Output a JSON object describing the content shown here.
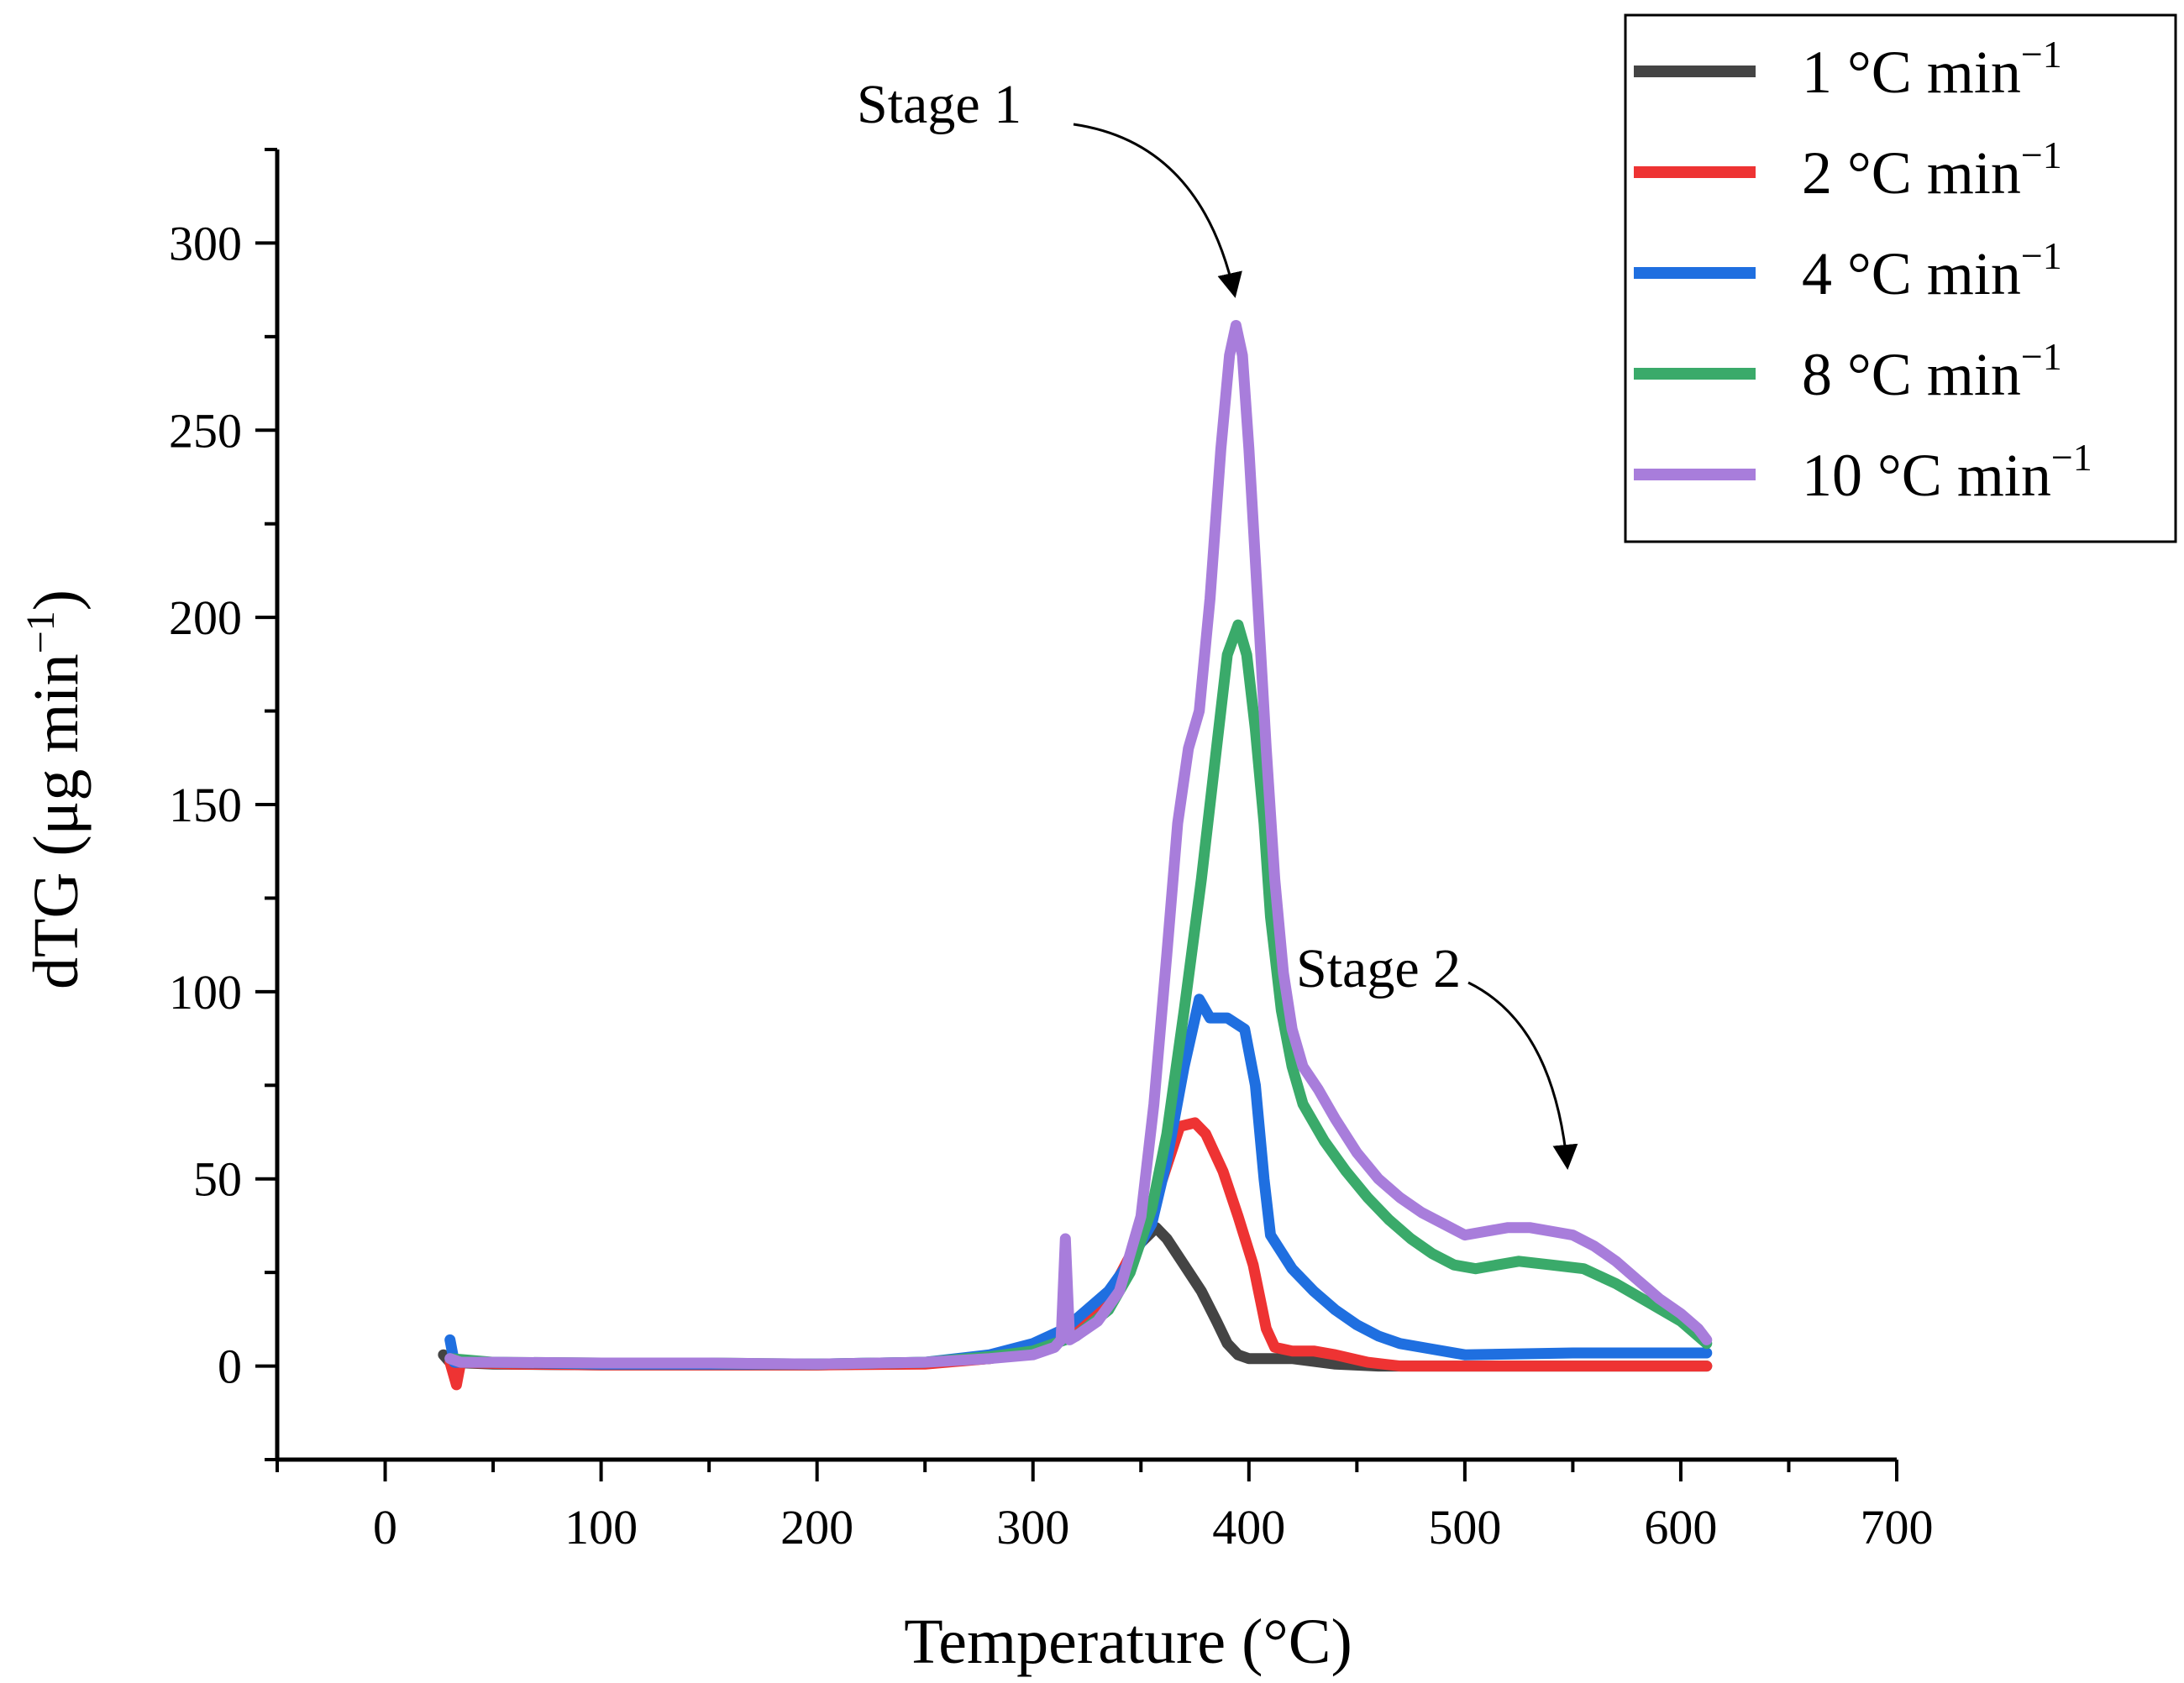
{
  "chart_data": {
    "type": "line",
    "title": "",
    "xlabel": "Temperature (°C)",
    "ylabel_main": "dTG (μg min",
    "ylabel_sup": "−1",
    "ylabel_tail": ")",
    "xlim": [
      -50,
      700
    ],
    "ylim": [
      -25,
      325
    ],
    "x_ticks": [
      0,
      100,
      200,
      300,
      400,
      500,
      600,
      700
    ],
    "x_tick_labels": [
      "0",
      "100",
      "200",
      "300",
      "400",
      "500",
      "600",
      "700"
    ],
    "y_ticks": [
      0,
      50,
      100,
      150,
      200,
      250,
      300
    ],
    "y_tick_labels": [
      "0",
      "50",
      "100",
      "150",
      "200",
      "250",
      "300"
    ],
    "legend_position": "top-right",
    "series": [
      {
        "name": "1 °C min",
        "name_sup": "−1",
        "color": "#444444",
        "points": [
          [
            27,
            3
          ],
          [
            30,
            1
          ],
          [
            50,
            0.5
          ],
          [
            100,
            0.3
          ],
          [
            150,
            0.3
          ],
          [
            200,
            0.3
          ],
          [
            250,
            0.8
          ],
          [
            280,
            2
          ],
          [
            300,
            4
          ],
          [
            310,
            6
          ],
          [
            320,
            9
          ],
          [
            330,
            15
          ],
          [
            340,
            24
          ],
          [
            350,
            33
          ],
          [
            357,
            37
          ],
          [
            362,
            34
          ],
          [
            370,
            27
          ],
          [
            378,
            20
          ],
          [
            385,
            12
          ],
          [
            390,
            6
          ],
          [
            395,
            3
          ],
          [
            400,
            2
          ],
          [
            420,
            2
          ],
          [
            440,
            0.5
          ],
          [
            460,
            0
          ],
          [
            500,
            0
          ],
          [
            550,
            0
          ],
          [
            612,
            0
          ]
        ]
      },
      {
        "name": "2 °C min",
        "name_sup": "−1",
        "color": "#ee3333",
        "points": [
          [
            30,
            1
          ],
          [
            33,
            -5
          ],
          [
            35,
            1
          ],
          [
            60,
            0.5
          ],
          [
            100,
            0.3
          ],
          [
            150,
            0.3
          ],
          [
            200,
            0.3
          ],
          [
            250,
            0.5
          ],
          [
            280,
            2
          ],
          [
            300,
            4
          ],
          [
            320,
            10
          ],
          [
            330,
            15
          ],
          [
            340,
            24
          ],
          [
            350,
            35
          ],
          [
            360,
            50
          ],
          [
            368,
            64
          ],
          [
            375,
            65
          ],
          [
            380,
            62
          ],
          [
            388,
            52
          ],
          [
            395,
            40
          ],
          [
            402,
            27
          ],
          [
            408,
            10
          ],
          [
            412,
            5
          ],
          [
            420,
            4
          ],
          [
            430,
            4
          ],
          [
            440,
            3
          ],
          [
            455,
            1
          ],
          [
            470,
            0
          ],
          [
            500,
            0
          ],
          [
            550,
            0
          ],
          [
            612,
            0
          ]
        ]
      },
      {
        "name": "4 °C min",
        "name_sup": "−1",
        "color": "#1f6fe0",
        "points": [
          [
            30,
            7
          ],
          [
            32,
            1
          ],
          [
            50,
            1
          ],
          [
            100,
            0.5
          ],
          [
            150,
            0.5
          ],
          [
            200,
            0.5
          ],
          [
            250,
            1
          ],
          [
            280,
            3
          ],
          [
            300,
            6
          ],
          [
            315,
            10
          ],
          [
            325,
            15
          ],
          [
            335,
            20
          ],
          [
            345,
            28
          ],
          [
            355,
            38
          ],
          [
            362,
            55
          ],
          [
            370,
            80
          ],
          [
            377,
            98
          ],
          [
            382,
            93
          ],
          [
            390,
            93
          ],
          [
            398,
            90
          ],
          [
            403,
            75
          ],
          [
            407,
            50
          ],
          [
            410,
            35
          ],
          [
            420,
            26
          ],
          [
            430,
            20
          ],
          [
            440,
            15
          ],
          [
            450,
            11
          ],
          [
            460,
            8
          ],
          [
            470,
            6
          ],
          [
            485,
            4.5
          ],
          [
            500,
            3
          ],
          [
            550,
            3.5
          ],
          [
            612,
            3.5
          ]
        ]
      },
      {
        "name": "8 °C min",
        "name_sup": "−1",
        "color": "#3aaa6a",
        "points": [
          [
            30,
            2
          ],
          [
            50,
            1
          ],
          [
            100,
            0.8
          ],
          [
            150,
            0.8
          ],
          [
            200,
            0.5
          ],
          [
            250,
            1
          ],
          [
            280,
            2.5
          ],
          [
            300,
            4
          ],
          [
            320,
            8
          ],
          [
            335,
            15
          ],
          [
            345,
            25
          ],
          [
            355,
            42
          ],
          [
            362,
            62
          ],
          [
            370,
            95
          ],
          [
            378,
            130
          ],
          [
            385,
            165
          ],
          [
            390,
            190
          ],
          [
            395,
            198
          ],
          [
            399,
            190
          ],
          [
            403,
            170
          ],
          [
            407,
            145
          ],
          [
            410,
            120
          ],
          [
            415,
            95
          ],
          [
            420,
            80
          ],
          [
            425,
            70
          ],
          [
            435,
            60
          ],
          [
            445,
            52
          ],
          [
            455,
            45
          ],
          [
            465,
            39
          ],
          [
            475,
            34
          ],
          [
            485,
            30
          ],
          [
            495,
            27
          ],
          [
            505,
            26
          ],
          [
            515,
            27
          ],
          [
            525,
            28
          ],
          [
            540,
            27
          ],
          [
            555,
            26
          ],
          [
            570,
            22
          ],
          [
            585,
            17
          ],
          [
            600,
            12
          ],
          [
            612,
            6
          ]
        ]
      },
      {
        "name": "10 °C min",
        "name_sup": "−1",
        "color": "#a87ddb",
        "points": [
          [
            30,
            2
          ],
          [
            35,
            1
          ],
          [
            50,
            1
          ],
          [
            100,
            0.8
          ],
          [
            150,
            0.8
          ],
          [
            200,
            0.5
          ],
          [
            250,
            1
          ],
          [
            280,
            2
          ],
          [
            300,
            3
          ],
          [
            310,
            5
          ],
          [
            313,
            7
          ],
          [
            315,
            34
          ],
          [
            317,
            7
          ],
          [
            320,
            8
          ],
          [
            330,
            12
          ],
          [
            340,
            20
          ],
          [
            350,
            40
          ],
          [
            356,
            70
          ],
          [
            362,
            110
          ],
          [
            367,
            145
          ],
          [
            372,
            165
          ],
          [
            377,
            175
          ],
          [
            382,
            205
          ],
          [
            387,
            245
          ],
          [
            391,
            270
          ],
          [
            394,
            278
          ],
          [
            397,
            270
          ],
          [
            400,
            245
          ],
          [
            404,
            205
          ],
          [
            408,
            165
          ],
          [
            412,
            130
          ],
          [
            416,
            105
          ],
          [
            420,
            90
          ],
          [
            425,
            80
          ],
          [
            432,
            74
          ],
          [
            440,
            66
          ],
          [
            450,
            57
          ],
          [
            460,
            50
          ],
          [
            470,
            45
          ],
          [
            480,
            41
          ],
          [
            490,
            38
          ],
          [
            500,
            35
          ],
          [
            510,
            36
          ],
          [
            520,
            37
          ],
          [
            530,
            37
          ],
          [
            540,
            36
          ],
          [
            550,
            35
          ],
          [
            560,
            32
          ],
          [
            570,
            28
          ],
          [
            580,
            23
          ],
          [
            590,
            18
          ],
          [
            600,
            14
          ],
          [
            608,
            10
          ],
          [
            612,
            7
          ]
        ]
      }
    ],
    "annotations": [
      {
        "id": "stage1",
        "text": "Stage 1",
        "x": 295,
        "y": 315,
        "arrow_to": [
          393,
          285
        ]
      },
      {
        "id": "stage2",
        "text": "Stage 2",
        "x": 412,
        "y": 105,
        "arrow_to": [
          547,
          50
        ]
      }
    ]
  }
}
